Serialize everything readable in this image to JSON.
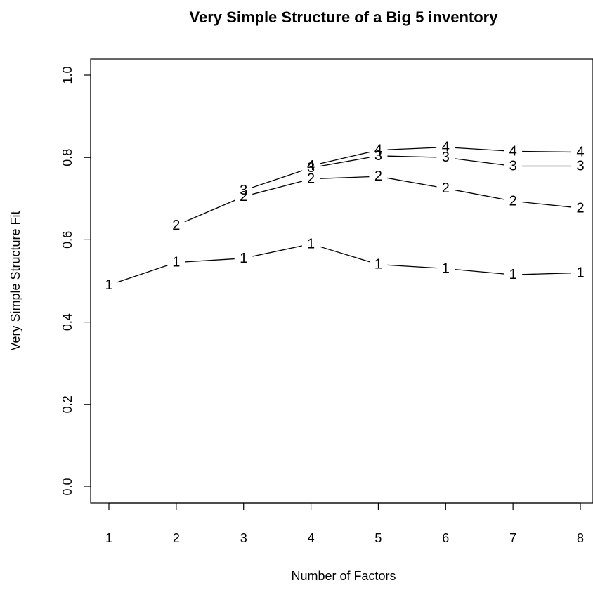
{
  "chart_data": {
    "type": "line",
    "title": "Very Simple Structure of a Big 5 inventory",
    "xlabel": "Number of Factors",
    "ylabel": "Very Simple Structure Fit",
    "xlim": [
      1,
      8
    ],
    "ylim": [
      0,
      1
    ],
    "x_ticks": [
      1,
      2,
      3,
      4,
      5,
      6,
      7,
      8
    ],
    "y_ticks": [
      "0.0",
      "0.2",
      "0.4",
      "0.6",
      "0.8",
      "1.0"
    ],
    "grid": false,
    "legend": "none",
    "series": [
      {
        "name": "1",
        "x": [
          1,
          2,
          3,
          4,
          5,
          6,
          7,
          8
        ],
        "values": [
          0.49,
          0.545,
          0.555,
          0.59,
          0.54,
          0.53,
          0.515,
          0.52
        ]
      },
      {
        "name": "2",
        "x": [
          2,
          3,
          4,
          5,
          6,
          7,
          8
        ],
        "values": [
          0.635,
          0.705,
          0.748,
          0.754,
          0.725,
          0.694,
          0.677
        ]
      },
      {
        "name": "3",
        "x": [
          3,
          4,
          5,
          6,
          7,
          8
        ],
        "values": [
          0.72,
          0.775,
          0.804,
          0.8,
          0.779,
          0.779
        ]
      },
      {
        "name": "4",
        "x": [
          4,
          5,
          6,
          7,
          8
        ],
        "values": [
          0.78,
          0.818,
          0.825,
          0.815,
          0.813
        ]
      }
    ]
  }
}
